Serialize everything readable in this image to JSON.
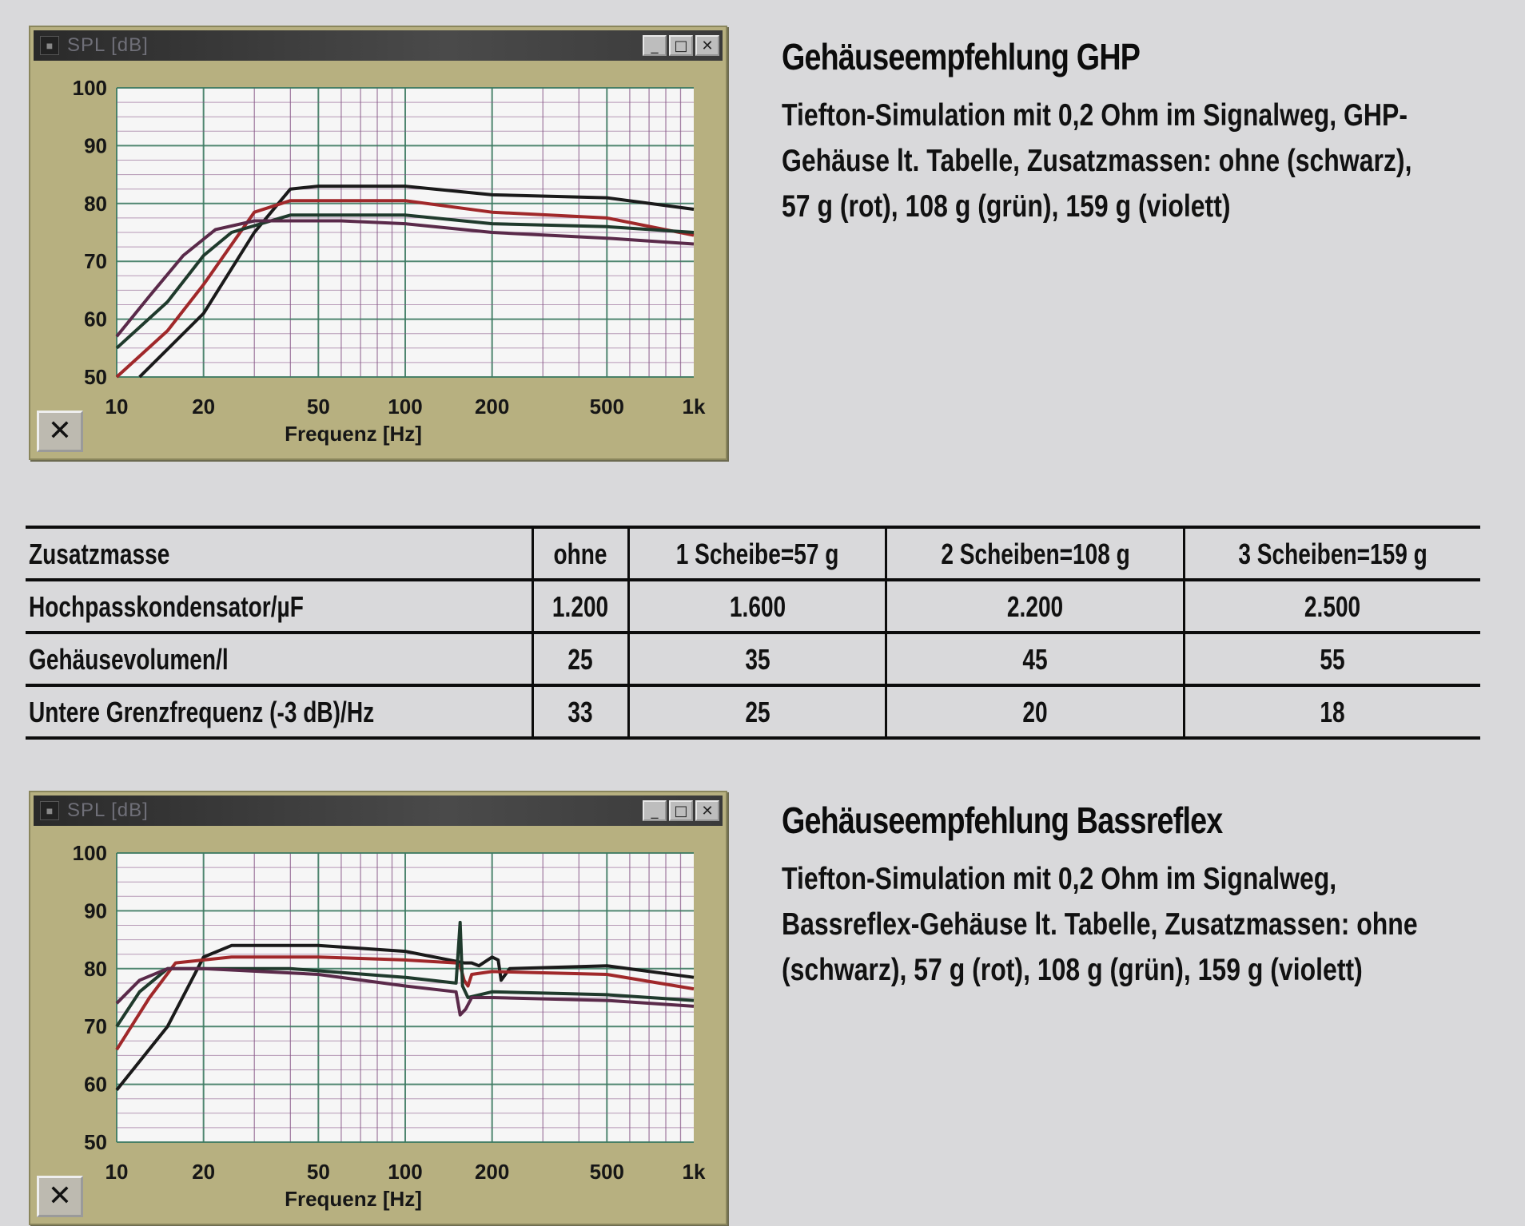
{
  "charts": [
    {
      "window_title": "SPL [dB]",
      "minimize_label": "_",
      "maximize_label": "□",
      "close_label": "✕",
      "corner_button_label": "✕"
    },
    {
      "window_title": "SPL [dB]",
      "minimize_label": "_",
      "maximize_label": "□",
      "close_label": "✕",
      "corner_button_label": "✕"
    }
  ],
  "chart_data": [
    {
      "type": "line",
      "xlabel": "Frequenz [Hz]",
      "ylabel": "",
      "x_scale": "log",
      "xlim": [
        10,
        1000
      ],
      "ylim": [
        50,
        100
      ],
      "x_ticks": [
        10,
        20,
        50,
        100,
        200,
        500,
        1000
      ],
      "x_tick_labels": [
        "10",
        "20",
        "50",
        "100",
        "200",
        "500",
        "1k"
      ],
      "y_ticks": [
        50,
        60,
        70,
        80,
        90,
        100
      ],
      "y_tick_labels": [
        "50",
        "60",
        "70",
        "80",
        "90",
        "100"
      ],
      "grid": true,
      "series": [
        {
          "color": "#1a1a1a",
          "points": [
            [
              12,
              50
            ],
            [
              20,
              61
            ],
            [
              30,
              75
            ],
            [
              40,
              82.5
            ],
            [
              50,
              83
            ],
            [
              100,
              83
            ],
            [
              200,
              81.5
            ],
            [
              500,
              81
            ],
            [
              1000,
              79
            ]
          ]
        },
        {
          "color": "#a0282a",
          "points": [
            [
              10,
              50
            ],
            [
              15,
              58
            ],
            [
              20,
              66
            ],
            [
              30,
              78.5
            ],
            [
              40,
              80.5
            ],
            [
              100,
              80.5
            ],
            [
              200,
              78.5
            ],
            [
              500,
              77.5
            ],
            [
              1000,
              74.5
            ]
          ]
        },
        {
          "color": "#1f3a2c",
          "points": [
            [
              10,
              55
            ],
            [
              15,
              63
            ],
            [
              20,
              71
            ],
            [
              25,
              75
            ],
            [
              40,
              78
            ],
            [
              100,
              78
            ],
            [
              200,
              76.5
            ],
            [
              500,
              76
            ],
            [
              1000,
              75
            ]
          ]
        },
        {
          "color": "#5a2a4a",
          "points": [
            [
              10,
              57
            ],
            [
              13,
              64
            ],
            [
              17,
              71
            ],
            [
              22,
              75.5
            ],
            [
              30,
              77
            ],
            [
              60,
              77
            ],
            [
              100,
              76.5
            ],
            [
              200,
              75
            ],
            [
              500,
              74
            ],
            [
              1000,
              73
            ]
          ]
        }
      ]
    },
    {
      "type": "line",
      "xlabel": "Frequenz [Hz]",
      "ylabel": "",
      "x_scale": "log",
      "xlim": [
        10,
        1000
      ],
      "ylim": [
        50,
        100
      ],
      "x_ticks": [
        10,
        20,
        50,
        100,
        200,
        500,
        1000
      ],
      "x_tick_labels": [
        "10",
        "20",
        "50",
        "100",
        "200",
        "500",
        "1k"
      ],
      "y_ticks": [
        50,
        60,
        70,
        80,
        90,
        100
      ],
      "y_tick_labels": [
        "50",
        "60",
        "70",
        "80",
        "90",
        "100"
      ],
      "grid": true,
      "series": [
        {
          "color": "#1a1a1a",
          "points": [
            [
              10,
              59
            ],
            [
              15,
              70
            ],
            [
              20,
              82
            ],
            [
              25,
              84
            ],
            [
              50,
              84
            ],
            [
              100,
              83
            ],
            [
              160,
              81
            ],
            [
              170,
              81
            ],
            [
              180,
              80.5
            ],
            [
              200,
              82
            ],
            [
              210,
              81.5
            ],
            [
              215,
              78
            ],
            [
              230,
              80
            ],
            [
              500,
              80.5
            ],
            [
              1000,
              78.5
            ]
          ]
        },
        {
          "color": "#a0282a",
          "points": [
            [
              10,
              66
            ],
            [
              13,
              75
            ],
            [
              16,
              81
            ],
            [
              25,
              82
            ],
            [
              50,
              82
            ],
            [
              100,
              81.5
            ],
            [
              150,
              81
            ],
            [
              155,
              80.5
            ],
            [
              160,
              78
            ],
            [
              165,
              77
            ],
            [
              170,
              79
            ],
            [
              200,
              79.5
            ],
            [
              500,
              79
            ],
            [
              1000,
              76.5
            ]
          ]
        },
        {
          "color": "#1f3a2c",
          "points": [
            [
              10,
              70
            ],
            [
              12,
              76
            ],
            [
              15,
              80
            ],
            [
              40,
              80
            ],
            [
              100,
              78.5
            ],
            [
              150,
              77.5
            ],
            [
              155,
              88
            ],
            [
              158,
              77
            ],
            [
              165,
              75
            ],
            [
              200,
              76
            ],
            [
              500,
              75.5
            ],
            [
              1000,
              74.5
            ]
          ]
        },
        {
          "color": "#5a2a4a",
          "points": [
            [
              10,
              74
            ],
            [
              12,
              78
            ],
            [
              15,
              80
            ],
            [
              20,
              80
            ],
            [
              50,
              79
            ],
            [
              100,
              77
            ],
            [
              150,
              76
            ],
            [
              155,
              72
            ],
            [
              162,
              73
            ],
            [
              170,
              75
            ],
            [
              200,
              75
            ],
            [
              500,
              74.5
            ],
            [
              1000,
              73.5
            ]
          ]
        }
      ]
    }
  ],
  "captions": [
    {
      "title": "Gehäuseempfehlung GHP",
      "text": "Tiefton-Simulation mit 0,2 Ohm im Signalweg, GHP-Gehäuse lt. Tabelle, Zusatzmassen: ohne (schwarz), 57 g (rot), 108 g (grün), 159 g (violett)"
    },
    {
      "title": "Gehäuseempfehlung Bassreflex",
      "text": "Tiefton-Simulation mit 0,2 Ohm im Signalweg, Bassreflex-Gehäuse lt. Tabelle, Zusatzmassen: ohne (schwarz), 57 g (rot), 108 g (grün), 159 g (violett)"
    }
  ],
  "table": {
    "header": [
      "Zusatzmasse",
      "ohne",
      "1 Scheibe=57 g",
      "2 Scheiben=108 g",
      "3 Scheiben=159 g"
    ],
    "rows": [
      [
        "Hochpasskondensator/µF",
        "1.200",
        "1.600",
        "2.200",
        "2.500"
      ],
      [
        "Gehäusevolumen/l",
        "25",
        "35",
        "45",
        "55"
      ],
      [
        "Untere Grenzfrequenz (-3 dB)/Hz",
        "33",
        "25",
        "20",
        "18"
      ]
    ]
  },
  "colors": {
    "window_frame": "#b7b080",
    "plot_background": "#f6f6f6",
    "grid_major": "#3d7a62",
    "grid_minor": "#8a5a8a",
    "titlebar": "#333333"
  }
}
